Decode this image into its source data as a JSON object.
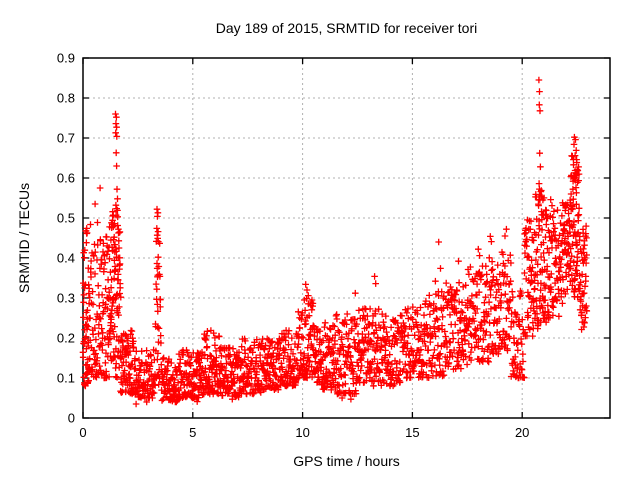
{
  "chart_data": {
    "type": "scatter",
    "title": "Day 189 of 2015, SRMTID for receiver tori",
    "xlabel": "GPS time / hours",
    "ylabel": "SRMTID / TECUs",
    "xlim": [
      0,
      24
    ],
    "ylim": [
      0,
      0.9
    ],
    "xticks": [
      0,
      5,
      10,
      15,
      20
    ],
    "xtick_labels": [
      "0",
      "5",
      "10",
      "15",
      "20"
    ],
    "yticks": [
      0,
      0.1,
      0.2,
      0.3,
      0.4,
      0.5,
      0.6,
      0.7,
      0.8,
      0.9
    ],
    "ytick_labels": [
      "0",
      "0.1",
      "0.2",
      "0.3",
      "0.4",
      "0.5",
      "0.6",
      "0.7",
      "0.8",
      "0.9"
    ],
    "grid": true,
    "grid_color": "#b0b0b0",
    "marker": "+",
    "marker_color": "#ff0000",
    "border_color": "#000000",
    "background_color": "#ffffff",
    "legend": "none",
    "points": [
      [
        0.78,
        0.575
      ],
      [
        0.55,
        0.535
      ],
      [
        1.48,
        0.76
      ],
      [
        1.52,
        0.752
      ],
      [
        1.5,
        0.736
      ],
      [
        1.53,
        0.727
      ],
      [
        1.49,
        0.713
      ],
      [
        1.54,
        0.704
      ],
      [
        1.51,
        0.663
      ],
      [
        1.53,
        0.63
      ],
      [
        1.55,
        0.572
      ],
      [
        1.57,
        0.548
      ],
      [
        1.5,
        0.532
      ],
      [
        1.58,
        0.503
      ],
      [
        1.61,
        0.472
      ],
      [
        1.63,
        0.443
      ],
      [
        1.45,
        0.415
      ],
      [
        1.42,
        0.452
      ],
      [
        1.38,
        0.478
      ],
      [
        1.35,
        0.505
      ],
      [
        1.3,
        0.488
      ],
      [
        1.66,
        0.382
      ],
      [
        1.69,
        0.336
      ],
      [
        1.72,
        0.302
      ],
      [
        3.37,
        0.522
      ],
      [
        3.41,
        0.513
      ],
      [
        3.39,
        0.504
      ],
      [
        3.36,
        0.474
      ],
      [
        3.42,
        0.466
      ],
      [
        3.38,
        0.457
      ],
      [
        3.4,
        0.449
      ],
      [
        3.43,
        0.441
      ],
      [
        3.38,
        0.374
      ],
      [
        3.41,
        0.357
      ],
      [
        3.39,
        0.284
      ],
      [
        3.4,
        0.227
      ],
      [
        10.14,
        0.334
      ],
      [
        10.2,
        0.32
      ],
      [
        10.26,
        0.306
      ],
      [
        10.08,
        0.295
      ],
      [
        12.4,
        0.312
      ],
      [
        13.28,
        0.354
      ],
      [
        13.33,
        0.336
      ],
      [
        16.2,
        0.44
      ],
      [
        16.28,
        0.374
      ],
      [
        16.05,
        0.342
      ],
      [
        17.1,
        0.392
      ],
      [
        18.0,
        0.422
      ],
      [
        18.06,
        0.406
      ],
      [
        18.55,
        0.454
      ],
      [
        18.6,
        0.441
      ],
      [
        19.28,
        0.472
      ],
      [
        19.22,
        0.455
      ],
      [
        20.3,
        0.472
      ],
      [
        20.76,
        0.845
      ],
      [
        20.79,
        0.816
      ],
      [
        20.78,
        0.783
      ],
      [
        20.81,
        0.768
      ],
      [
        20.8,
        0.662
      ],
      [
        20.83,
        0.628
      ],
      [
        20.77,
        0.586
      ],
      [
        20.85,
        0.566
      ],
      [
        20.81,
        0.546
      ],
      [
        20.75,
        0.531
      ],
      [
        20.88,
        0.516
      ],
      [
        20.9,
        0.496
      ],
      [
        21.3,
        0.546
      ],
      [
        21.36,
        0.531
      ],
      [
        22.38,
        0.702
      ],
      [
        22.43,
        0.696
      ],
      [
        22.36,
        0.684
      ],
      [
        22.46,
        0.669
      ],
      [
        22.41,
        0.656
      ],
      [
        22.48,
        0.646
      ],
      [
        22.34,
        0.633
      ],
      [
        22.5,
        0.621
      ],
      [
        22.43,
        0.613
      ],
      [
        22.39,
        0.601
      ],
      [
        22.52,
        0.589
      ],
      [
        22.45,
        0.576
      ],
      [
        22.47,
        0.563
      ],
      [
        22.78,
        0.462
      ],
      [
        22.84,
        0.432
      ],
      [
        22.87,
        0.4
      ],
      [
        22.9,
        0.354
      ],
      [
        22.82,
        0.312
      ],
      [
        22.92,
        0.28
      ],
      [
        2.9,
        0.04
      ],
      [
        3.6,
        0.044
      ],
      [
        5.2,
        0.041
      ],
      [
        6.8,
        0.047
      ],
      [
        11.8,
        0.05
      ],
      [
        12.2,
        0.047
      ],
      [
        2.42,
        0.035
      ]
    ],
    "band_envelope_format": [
      "t_start_hours",
      "t_end_hours",
      "y_min",
      "y_max",
      "point_count",
      "low_bias_exponent"
    ],
    "band_envelope": [
      [
        0.0,
        0.3,
        0.08,
        0.5,
        60,
        1.4
      ],
      [
        0.3,
        0.8,
        0.1,
        0.5,
        60,
        1.5
      ],
      [
        0.8,
        1.2,
        0.1,
        0.46,
        55,
        1.5
      ],
      [
        1.2,
        1.45,
        0.12,
        0.52,
        45,
        1.2
      ],
      [
        1.45,
        1.7,
        0.1,
        0.55,
        45,
        1.3
      ],
      [
        1.7,
        2.3,
        0.06,
        0.22,
        75,
        1.4
      ],
      [
        2.3,
        3.3,
        0.05,
        0.18,
        95,
        1.4
      ],
      [
        3.3,
        3.55,
        0.08,
        0.45,
        30,
        1.3
      ],
      [
        3.55,
        4.5,
        0.04,
        0.16,
        95,
        1.4
      ],
      [
        4.5,
        5.5,
        0.05,
        0.17,
        105,
        1.4
      ],
      [
        5.5,
        6.3,
        0.06,
        0.22,
        90,
        1.5
      ],
      [
        6.3,
        7.2,
        0.05,
        0.18,
        90,
        1.4
      ],
      [
        7.2,
        8.2,
        0.06,
        0.2,
        95,
        1.5
      ],
      [
        8.2,
        9.0,
        0.07,
        0.2,
        85,
        1.4
      ],
      [
        9.0,
        9.8,
        0.08,
        0.22,
        85,
        1.4
      ],
      [
        9.8,
        10.6,
        0.1,
        0.3,
        90,
        1.5
      ],
      [
        10.6,
        11.5,
        0.07,
        0.24,
        95,
        1.4
      ],
      [
        11.5,
        12.5,
        0.06,
        0.26,
        100,
        1.4
      ],
      [
        12.5,
        13.5,
        0.08,
        0.28,
        100,
        1.4
      ],
      [
        13.5,
        14.5,
        0.08,
        0.26,
        95,
        1.4
      ],
      [
        14.5,
        15.5,
        0.1,
        0.28,
        95,
        1.4
      ],
      [
        15.5,
        16.5,
        0.1,
        0.32,
        90,
        1.4
      ],
      [
        16.5,
        17.5,
        0.12,
        0.34,
        95,
        1.3
      ],
      [
        17.5,
        18.5,
        0.14,
        0.38,
        95,
        1.3
      ],
      [
        18.5,
        19.5,
        0.16,
        0.42,
        95,
        1.2
      ],
      [
        19.5,
        20.1,
        0.1,
        0.32,
        55,
        1.3
      ],
      [
        20.1,
        20.6,
        0.2,
        0.5,
        60,
        1.1
      ],
      [
        20.6,
        21.1,
        0.22,
        0.58,
        70,
        1.1
      ],
      [
        21.1,
        21.8,
        0.25,
        0.52,
        78,
        1.1
      ],
      [
        21.8,
        22.2,
        0.28,
        0.55,
        55,
        1.0
      ],
      [
        22.2,
        22.6,
        0.3,
        0.66,
        70,
        1.0
      ],
      [
        22.6,
        22.95,
        0.22,
        0.48,
        45,
        1.1
      ]
    ],
    "seed": 189
  }
}
